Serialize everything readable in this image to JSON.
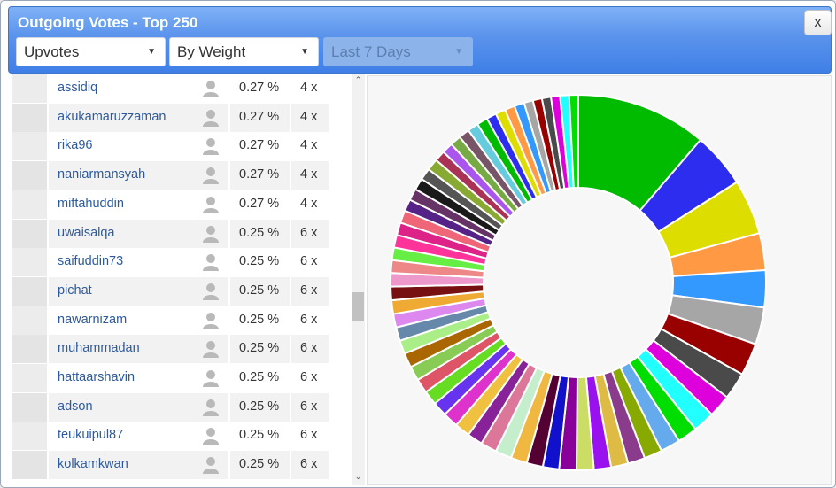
{
  "header": {
    "title": "Outgoing Votes - Top 250",
    "close_label": "x"
  },
  "filters": {
    "vote_type": "Upvotes",
    "sort": "By Weight",
    "period": "Last 7 Days"
  },
  "icons": {
    "caret": "chevron-down-icon",
    "avatar": "user-icon",
    "scroll_up": "arrow-up-icon",
    "scroll_down": "arrow-down-icon"
  },
  "rows": [
    {
      "name": "assidiq",
      "pct": "0.27 %",
      "count": "4 x"
    },
    {
      "name": "akukamaruzzaman",
      "pct": "0.27 %",
      "count": "4 x"
    },
    {
      "name": "rika96",
      "pct": "0.27 %",
      "count": "4 x"
    },
    {
      "name": "naniarmansyah",
      "pct": "0.27 %",
      "count": "4 x"
    },
    {
      "name": "miftahuddin",
      "pct": "0.27 %",
      "count": "4 x"
    },
    {
      "name": "uwaisalqa",
      "pct": "0.25 %",
      "count": "6 x"
    },
    {
      "name": "saifuddin73",
      "pct": "0.25 %",
      "count": "6 x"
    },
    {
      "name": "pichat",
      "pct": "0.25 %",
      "count": "6 x"
    },
    {
      "name": "nawarnizam",
      "pct": "0.25 %",
      "count": "6 x"
    },
    {
      "name": "muhammadan",
      "pct": "0.25 %",
      "count": "6 x"
    },
    {
      "name": "hattaarshavin",
      "pct": "0.25 %",
      "count": "6 x"
    },
    {
      "name": "adson",
      "pct": "0.25 %",
      "count": "6 x"
    },
    {
      "name": "teukuipul87",
      "pct": "0.25 %",
      "count": "6 x"
    },
    {
      "name": "kolkamkwan",
      "pct": "0.25 %",
      "count": "6 x"
    }
  ],
  "chart_data": {
    "type": "pie",
    "donut": true,
    "legend": "none",
    "values": [
      14.5,
      6.1,
      6.1,
      4.1,
      4.1,
      4.1,
      3.6,
      3.0,
      2.5,
      2.4,
      2.2,
      2.2,
      2.0,
      1.9,
      1.9,
      1.9,
      1.9,
      1.9,
      1.8,
      1.8,
      1.8,
      1.8,
      1.8,
      1.7,
      1.7,
      1.7,
      1.6,
      1.6,
      1.6,
      1.6,
      1.6,
      1.5,
      1.5,
      1.5,
      1.5,
      1.5,
      1.5,
      1.4,
      1.4,
      1.4,
      1.4,
      1.4,
      1.3,
      1.3,
      1.3,
      1.3,
      1.3,
      1.2,
      1.2,
      1.2,
      1.2,
      1.2,
      1.2,
      1.1,
      1.1,
      1.1,
      1.1,
      1.0,
      1.0,
      1.0,
      1.0,
      1.0,
      1.0
    ],
    "colors": [
      "#00bb00",
      "#2d2df0",
      "#dddd00",
      "#ff9944",
      "#3399ff",
      "#a6a6a6",
      "#990000",
      "#4a4a4a",
      "#dd00dd",
      "#22ffff",
      "#00dd00",
      "#66aaee",
      "#88aa00",
      "#8b3b8b",
      "#ddbb44",
      "#9911ee",
      "#ccdd66",
      "#880099",
      "#1111cc",
      "#550033",
      "#f0b840",
      "#c5eecc",
      "#dd7799",
      "#882299",
      "#f0c040",
      "#dd33cc",
      "#6633ee",
      "#66dd22",
      "#dd5566",
      "#88cc55",
      "#aa6600",
      "#aaee88",
      "#6688aa",
      "#dd88ee",
      "#eeaa33",
      "#771111",
      "#ee99cc",
      "#ee8888",
      "#66ee44",
      "#ff3399",
      "#dd2288",
      "#ee6677",
      "#552288",
      "#663366",
      "#1a1a1a",
      "#555555",
      "#88aa33",
      "#aa3355",
      "#aa55ee",
      "#77aa44",
      "#775566",
      "#66ccdd"
    ]
  }
}
